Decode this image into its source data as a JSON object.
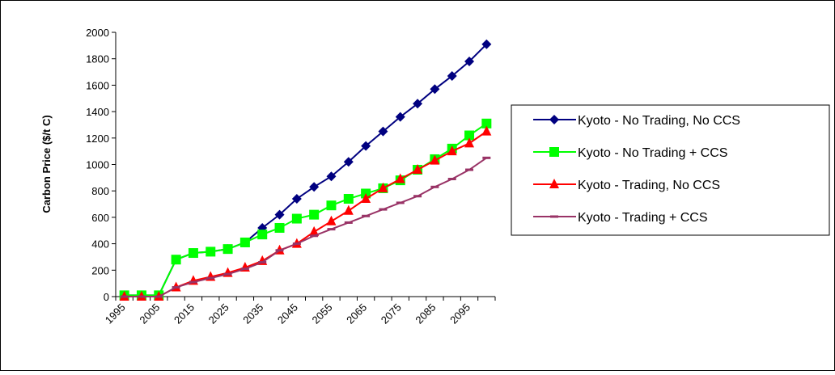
{
  "chart_data": {
    "type": "line",
    "y_label": "Carbon Price ($/t C)",
    "categories": [
      "1995",
      null,
      "2005",
      null,
      "2015",
      null,
      "2025",
      null,
      "2035",
      null,
      "2045",
      null,
      "2055",
      null,
      "2065",
      null,
      "2075",
      null,
      "2085",
      null,
      "2095",
      null
    ],
    "series": [
      {
        "name": "Kyoto - No Trading, No CCS",
        "color": "#000080",
        "marker": "diamond",
        "values": [
          10,
          10,
          10,
          280,
          330,
          340,
          360,
          410,
          520,
          620,
          740,
          830,
          910,
          1020,
          1140,
          1250,
          1360,
          1460,
          1570,
          1670,
          1780,
          1910
        ]
      },
      {
        "name": "Kyoto - No Trading + CCS",
        "color": "#00ff00",
        "marker": "square",
        "values": [
          10,
          10,
          10,
          280,
          330,
          340,
          360,
          410,
          470,
          520,
          590,
          620,
          690,
          740,
          780,
          820,
          880,
          960,
          1040,
          1120,
          1220,
          1310
        ]
      },
      {
        "name": "Kyoto - Trading, No CCS",
        "color": "#ff0000",
        "marker": "triangle",
        "values": [
          0,
          0,
          0,
          70,
          120,
          150,
          180,
          220,
          270,
          350,
          400,
          490,
          570,
          650,
          740,
          820,
          890,
          960,
          1030,
          1100,
          1160,
          1250
        ]
      },
      {
        "name": "Kyoto - Trading + CCS",
        "color": "#993366",
        "marker": "dash",
        "values": [
          0,
          0,
          0,
          70,
          110,
          140,
          170,
          210,
          260,
          350,
          400,
          460,
          510,
          560,
          610,
          660,
          710,
          760,
          830,
          890,
          960,
          1050
        ]
      }
    ],
    "ylim": [
      0,
      2000
    ],
    "yticks": [
      0,
      200,
      400,
      600,
      800,
      1000,
      1200,
      1400,
      1600,
      1800,
      2000
    ],
    "grid": false,
    "legend": "right"
  }
}
